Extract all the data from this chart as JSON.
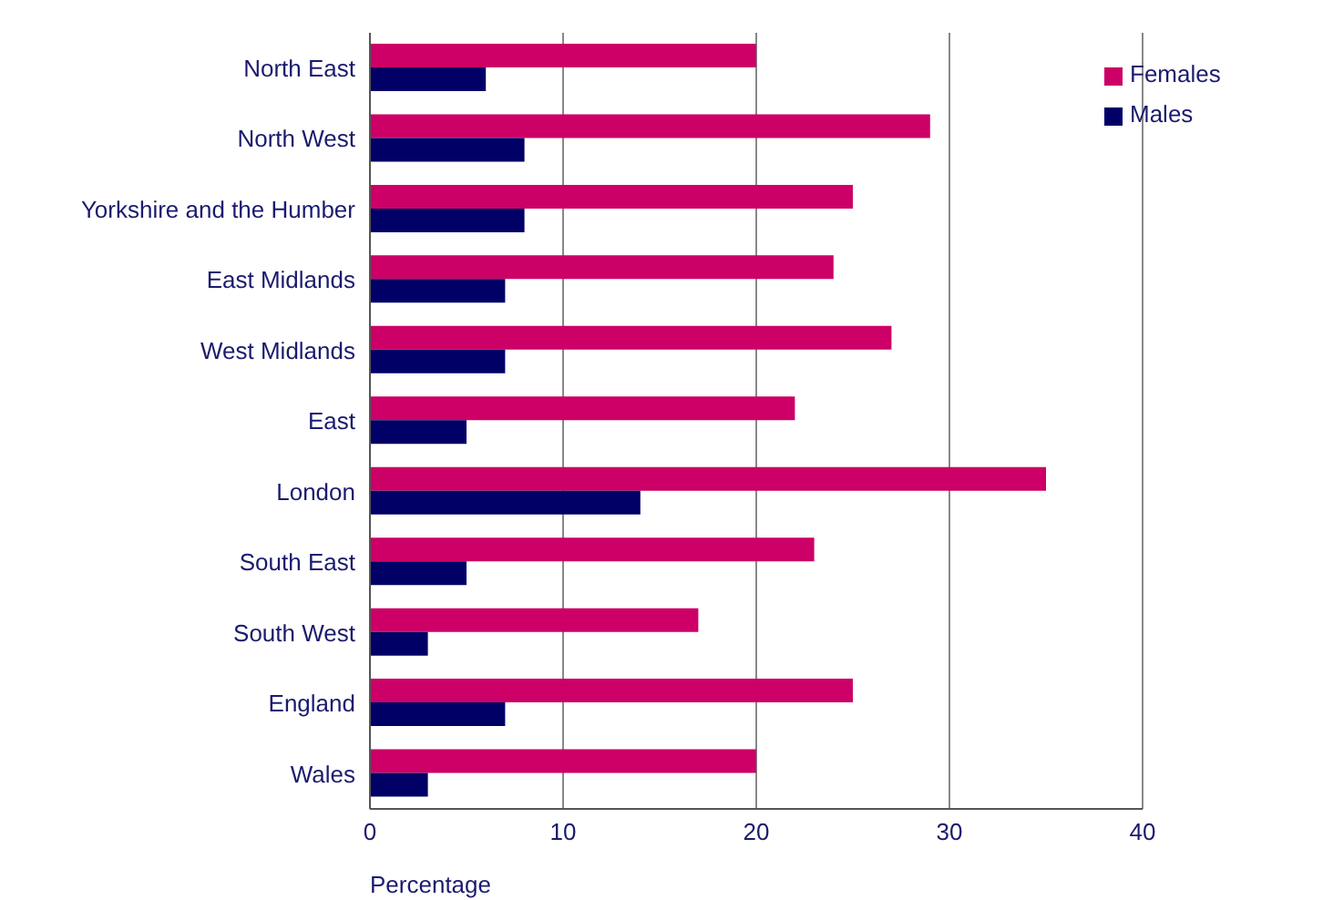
{
  "chart_data": {
    "type": "bar",
    "orientation": "horizontal",
    "xlabel": "Percentage",
    "categories": [
      "North East",
      "North West",
      "Yorkshire and the Humber",
      "East Midlands",
      "West Midlands",
      "East",
      "London",
      "South East",
      "South West",
      "England",
      "Wales"
    ],
    "series": [
      {
        "name": "Females",
        "color": "#cc0066",
        "values": [
          20,
          29,
          25,
          24,
          27,
          22,
          35,
          23,
          17,
          25,
          20
        ]
      },
      {
        "name": "Males",
        "color": "#000066",
        "values": [
          6,
          8,
          8,
          7,
          7,
          5,
          14,
          5,
          3,
          7,
          3
        ]
      }
    ],
    "xlim": [
      0,
      40
    ],
    "xticks": [
      0,
      10,
      20,
      30,
      40
    ],
    "grid": "x",
    "legend": "top right"
  }
}
